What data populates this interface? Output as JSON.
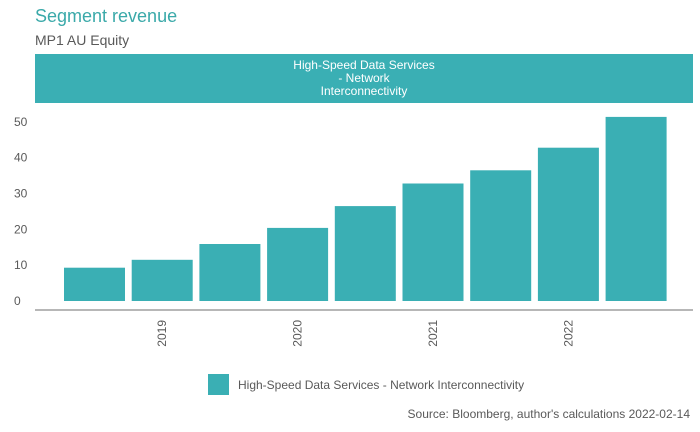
{
  "header": {
    "title": "Segment revenue",
    "subtitle": "MP1 AU Equity"
  },
  "banner": {
    "lines": [
      "High-Speed Data Services",
      "- Network",
      "Interconnectivity"
    ]
  },
  "legend": {
    "label": "High-Speed Data Services - Network Interconnectivity"
  },
  "footer": {
    "source": "Source: Bloomberg, author's calculations 2022-02-14"
  },
  "colors": {
    "bar": "#3aafb4",
    "title": "#3aa9a9"
  },
  "chart_data": {
    "type": "bar",
    "title": "Segment revenue",
    "subtitle": "MP1 AU Equity",
    "xlabel": "",
    "ylabel": "",
    "ylim": [
      0,
      55
    ],
    "yticks": [
      0,
      10,
      20,
      30,
      40,
      50
    ],
    "xtick_labels": [
      "2019",
      "2020",
      "2021",
      "2022"
    ],
    "grid": false,
    "legend_position": "bottom",
    "series": [
      {
        "name": "High-Speed Data Services - Network Interconnectivity",
        "values": [
          9.3,
          11.5,
          15.9,
          20.4,
          26.5,
          32.8,
          36.5,
          42.8,
          51.4
        ]
      }
    ]
  }
}
